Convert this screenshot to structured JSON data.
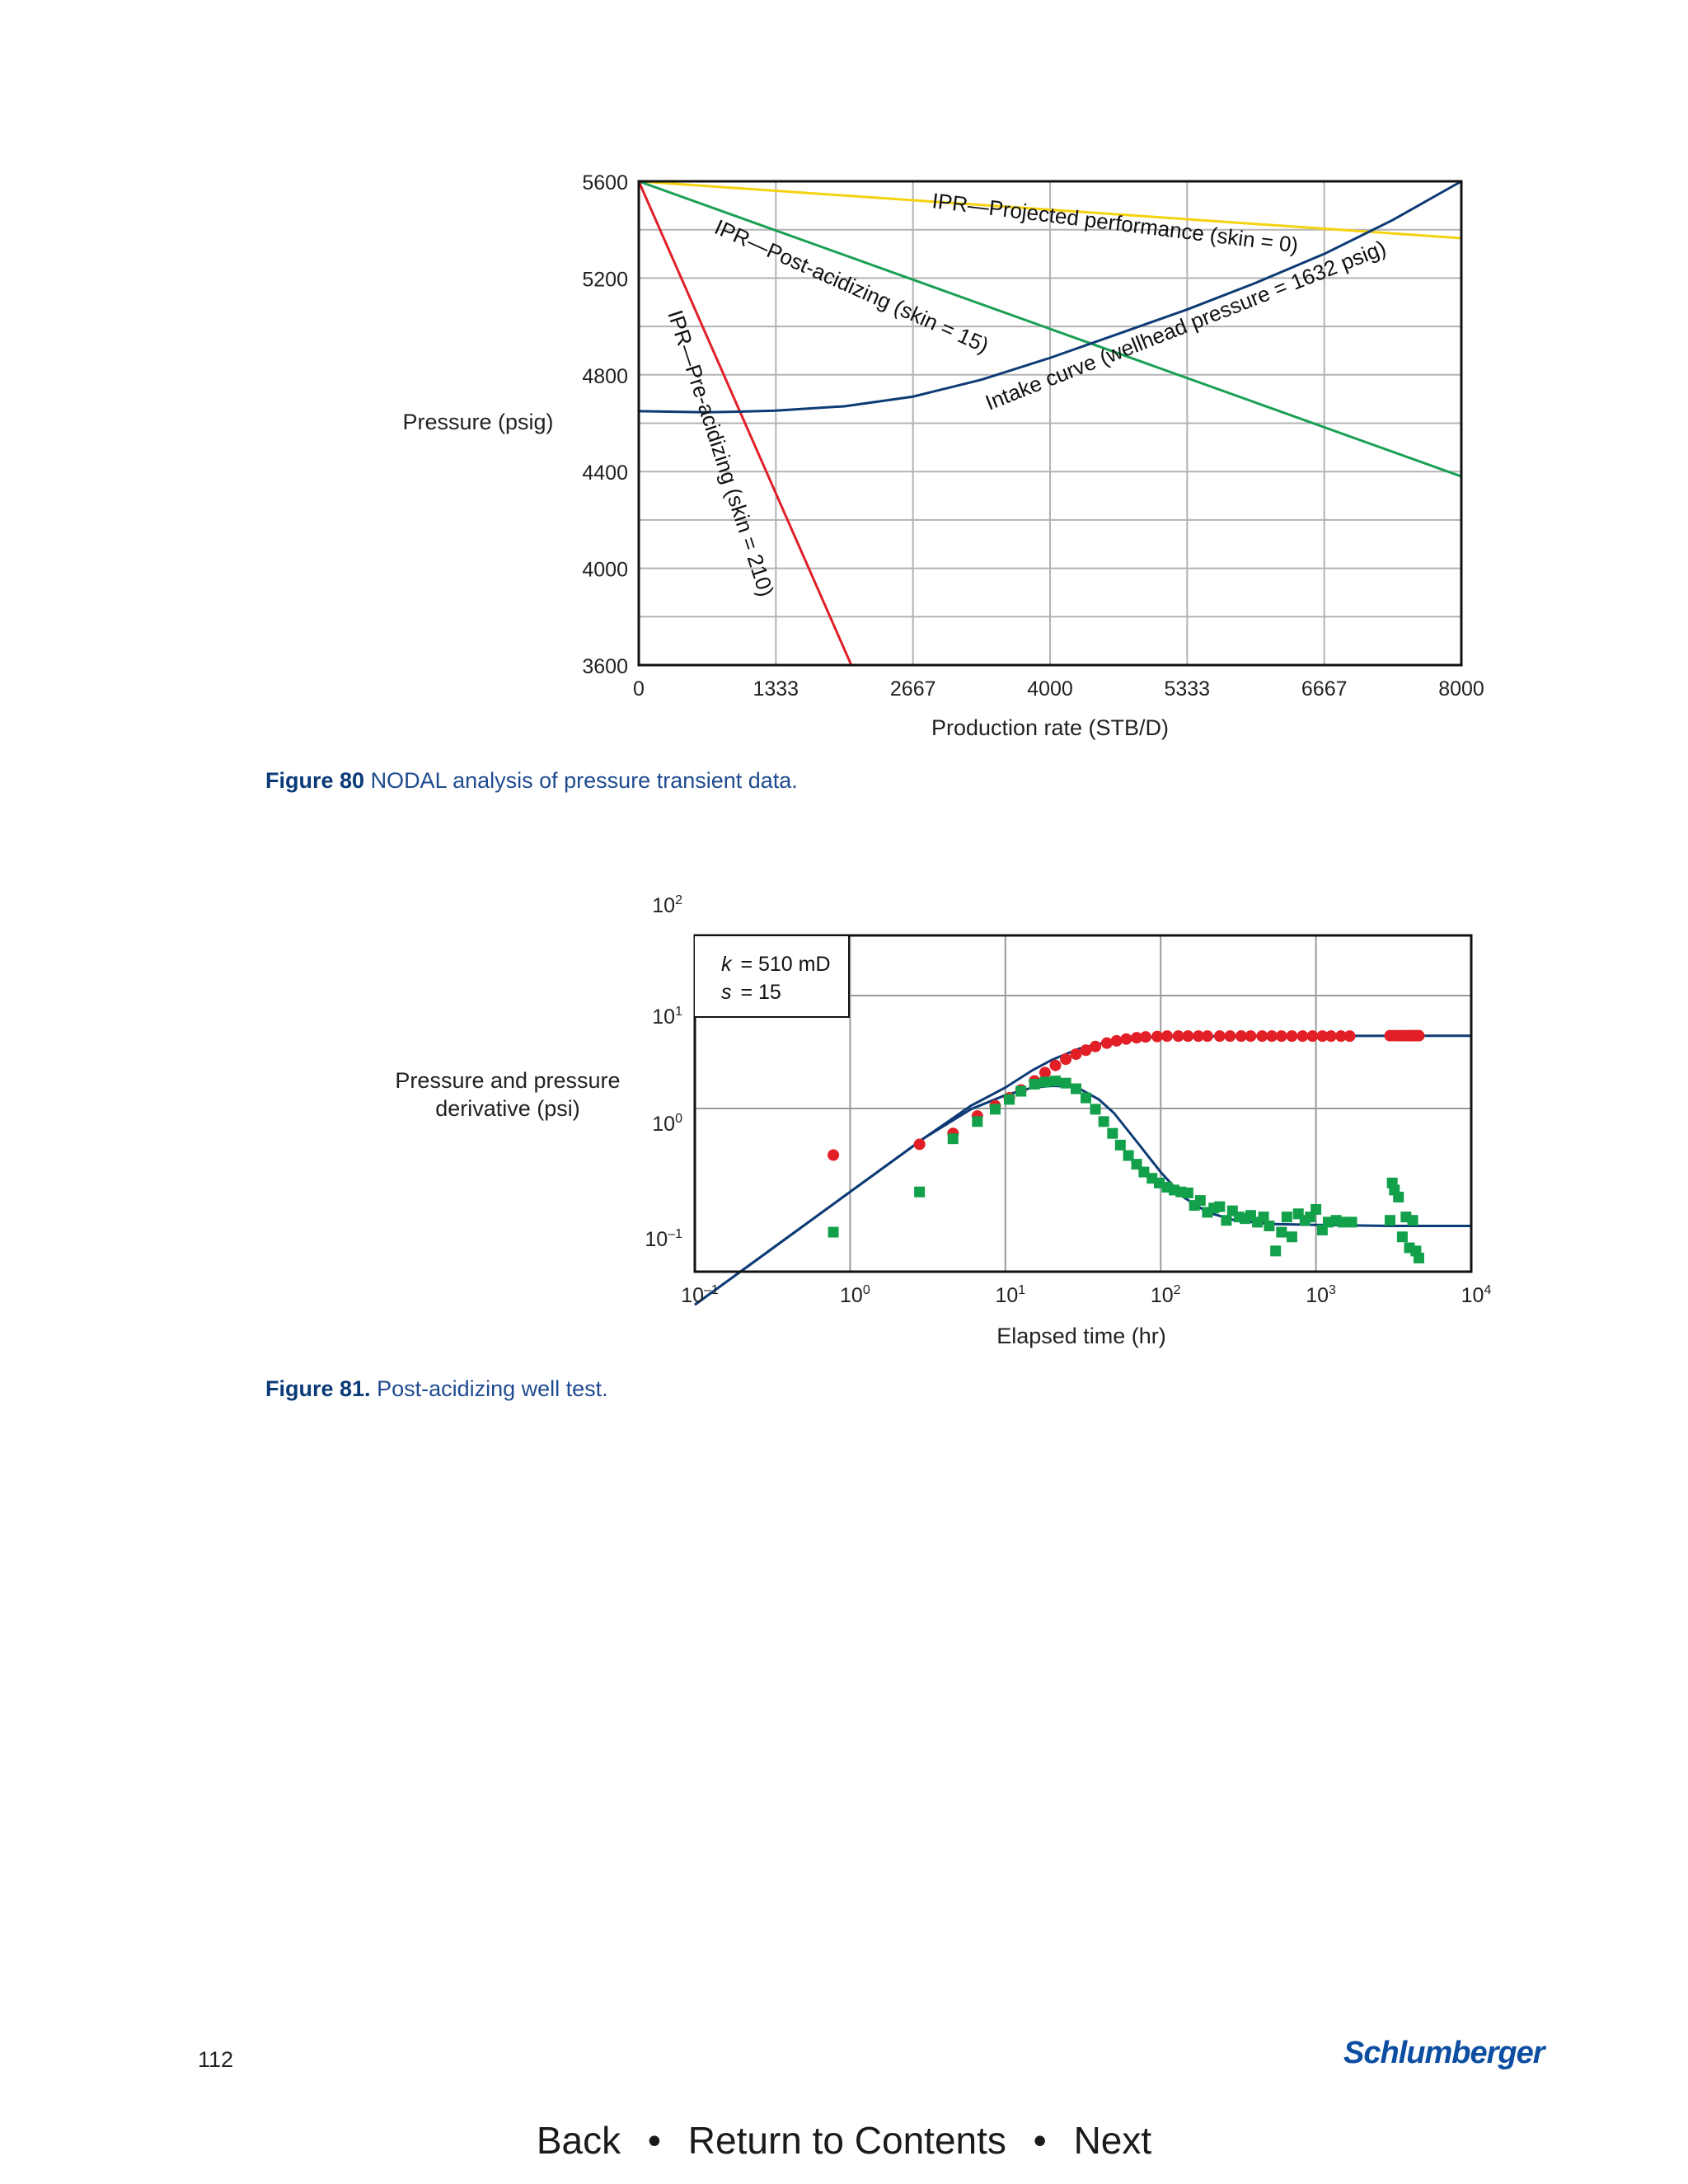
{
  "page": {
    "number": "112",
    "brand": "Schlumberger"
  },
  "nav": {
    "back": "Back",
    "contents": "Return to Contents",
    "next": "Next",
    "separator": "•"
  },
  "figure80": {
    "label": "Figure 80",
    "caption": "NODAL analysis of pressure transient data.",
    "colors": {
      "yellow": "#f5d20f",
      "green": "#1aa055",
      "red": "#e02027",
      "blue": "#0d3b75",
      "grid": "#b3b3b3"
    }
  },
  "figure81": {
    "label": "Figure 81.",
    "caption": "Post-acidizing well test.",
    "annotation": {
      "k_symbol": "k",
      "k_value": "= 510 mD",
      "s_symbol": "s",
      "s_value": "= 15"
    },
    "colors": {
      "red": "#e21f26",
      "green": "#12a04a",
      "blue": "#0d3b75",
      "grid": "#9a9a9a"
    }
  },
  "chart_data": [
    {
      "type": "line",
      "title": "",
      "xlabel": "Production rate (STB/D)",
      "ylabel": "Pressure (psig)",
      "xlim": [
        0,
        8000
      ],
      "ylim": [
        3600,
        5600
      ],
      "xticks": [
        "0",
        "1333",
        "2667",
        "4000",
        "5333",
        "6667",
        "8000"
      ],
      "yticks": [
        "3600",
        "4000",
        "4400",
        "4800",
        "5200",
        "5600"
      ],
      "grid": true,
      "series": [
        {
          "name": "IPR—Projected performance (skin = 0)",
          "color": "#f5d20f",
          "x": [
            0,
            8000
          ],
          "y": [
            5600,
            5365
          ]
        },
        {
          "name": "IPR—Post-acidizing (skin = 15)",
          "color": "#1aa055",
          "x": [
            0,
            8000
          ],
          "y": [
            5600,
            4380
          ]
        },
        {
          "name": "IPR—Pre-acidizing (skin = 210)",
          "color": "#e02027",
          "x": [
            0,
            2067
          ],
          "y": [
            5600,
            3600
          ]
        },
        {
          "name": "Intake curve (wellhead pressure = 1632 psig)",
          "color": "#0d3b75",
          "x": [
            0,
            650,
            1000,
            1333,
            2000,
            2667,
            3333,
            4000,
            4667,
            5333,
            6000,
            6667,
            7333,
            8000
          ],
          "y": [
            4650,
            4645,
            4648,
            4652,
            4670,
            4710,
            4780,
            4870,
            4970,
            5070,
            5180,
            5300,
            5440,
            5600
          ]
        }
      ]
    },
    {
      "type": "scatter",
      "title": "",
      "xlabel": "Elapsed time (hr)",
      "ylabel": "Pressure and pressure derivative (psi)",
      "xscale": "log",
      "yscale": "log",
      "xlim": [
        0.1,
        10000
      ],
      "ylim": [
        0.03,
        30
      ],
      "xticks": [
        {
          "base": "10",
          "exp": "–1"
        },
        {
          "base": "10",
          "exp": "0"
        },
        {
          "base": "10",
          "exp": "1"
        },
        {
          "base": "10",
          "exp": "2"
        },
        {
          "base": "10",
          "exp": "3"
        },
        {
          "base": "10",
          "exp": "4"
        }
      ],
      "yticks": [
        {
          "base": "10",
          "exp": "2"
        },
        {
          "base": "10",
          "exp": "1"
        },
        {
          "base": "10",
          "exp": "0"
        },
        {
          "base": "10",
          "exp": "–1"
        }
      ],
      "grid": true,
      "series": [
        {
          "role": "pressure",
          "marker": "circle",
          "color": "#e21f26",
          "x": [
            0.78,
            2.8,
            4.6,
            6.6,
            8.6,
            10.6,
            12.6,
            15.4,
            18,
            21,
            24.5,
            28.5,
            33,
            38,
            45,
            52,
            60,
            70,
            80,
            95,
            110,
            130,
            150,
            175,
            200,
            240,
            280,
            330,
            380,
            450,
            520,
            600,
            700,
            820,
            950,
            1100,
            1250,
            1450,
            1650,
            3000,
            3200,
            3400,
            3600,
            3800,
            4000,
            4200,
            4400,
            4600
          ],
          "y": [
            1.06,
            1.32,
            1.65,
            2.35,
            2.9,
            3.4,
            4.0,
            4.8,
            5.7,
            6.6,
            7.5,
            8.3,
            9.0,
            9.7,
            10.4,
            10.9,
            11.3,
            11.6,
            11.8,
            11.9,
            12.0,
            12.0,
            12.0,
            12.0,
            12.0,
            12.0,
            12.0,
            12.0,
            12.0,
            12.0,
            12.0,
            12.0,
            12.0,
            12.0,
            12.0,
            12.0,
            12.0,
            12.0,
            12.0,
            12.1,
            12.1,
            12.1,
            12.1,
            12.1,
            12.1,
            12.1,
            12.1,
            12.1
          ]
        },
        {
          "role": "pressure derivative",
          "marker": "square",
          "color": "#12a04a",
          "x": [
            0.78,
            2.8,
            4.6,
            6.6,
            8.6,
            10.6,
            12.6,
            15.4,
            18,
            21,
            24.5,
            28.5,
            33,
            38,
            43,
            49,
            55,
            62,
            70,
            78,
            88,
            98,
            110,
            122,
            135,
            150,
            165,
            180,
            200,
            220,
            240,
            265,
            290,
            320,
            350,
            380,
            420,
            460,
            500,
            550,
            600,
            650,
            700,
            770,
            850,
            920,
            1000,
            1100,
            1200,
            1350,
            1500,
            1700,
            3000,
            3100,
            3200,
            3400,
            3600,
            3800,
            4000,
            4200,
            4400,
            4600
          ],
          "y": [
            0.22,
            0.5,
            1.48,
            2.1,
            2.7,
            3.3,
            3.9,
            4.5,
            4.7,
            4.8,
            4.6,
            4.1,
            3.4,
            2.7,
            2.1,
            1.65,
            1.3,
            1.05,
            0.88,
            0.75,
            0.66,
            0.6,
            0.55,
            0.52,
            0.5,
            0.49,
            0.38,
            0.42,
            0.33,
            0.36,
            0.37,
            0.28,
            0.34,
            0.3,
            0.29,
            0.31,
            0.27,
            0.3,
            0.25,
            0.15,
            0.22,
            0.3,
            0.2,
            0.32,
            0.28,
            0.3,
            0.35,
            0.23,
            0.27,
            0.28,
            0.27,
            0.27,
            0.28,
            0.6,
            0.52,
            0.45,
            0.2,
            0.3,
            0.16,
            0.28,
            0.15,
            0.13
          ]
        },
        {
          "role": "model",
          "marker": "line",
          "color": "#0d3b75",
          "x": [
            0.1,
            0.3,
            1,
            3,
            6,
            10,
            15,
            20,
            25,
            30,
            40,
            50,
            70,
            100,
            140,
            200,
            300,
            500,
            1000,
            3000,
            10000
          ],
          "y": [
            0.05,
            0.15,
            0.5,
            1.5,
            2.7,
            3.6,
            4.2,
            4.35,
            4.3,
            4.1,
            3.3,
            2.5,
            1.4,
            0.75,
            0.45,
            0.33,
            0.28,
            0.26,
            0.255,
            0.25,
            0.25
          ]
        },
        {
          "role": "model pressure",
          "marker": "line",
          "color": "#0d3b75",
          "x": [
            0.1,
            0.3,
            1,
            3,
            6,
            10,
            15,
            20,
            30,
            50,
            100,
            300,
            1000,
            10000
          ],
          "y": [
            0.05,
            0.15,
            0.5,
            1.5,
            2.9,
            4.2,
            6.0,
            7.4,
            9.3,
            11.0,
            11.9,
            12.0,
            12.05,
            12.1
          ]
        }
      ]
    }
  ]
}
